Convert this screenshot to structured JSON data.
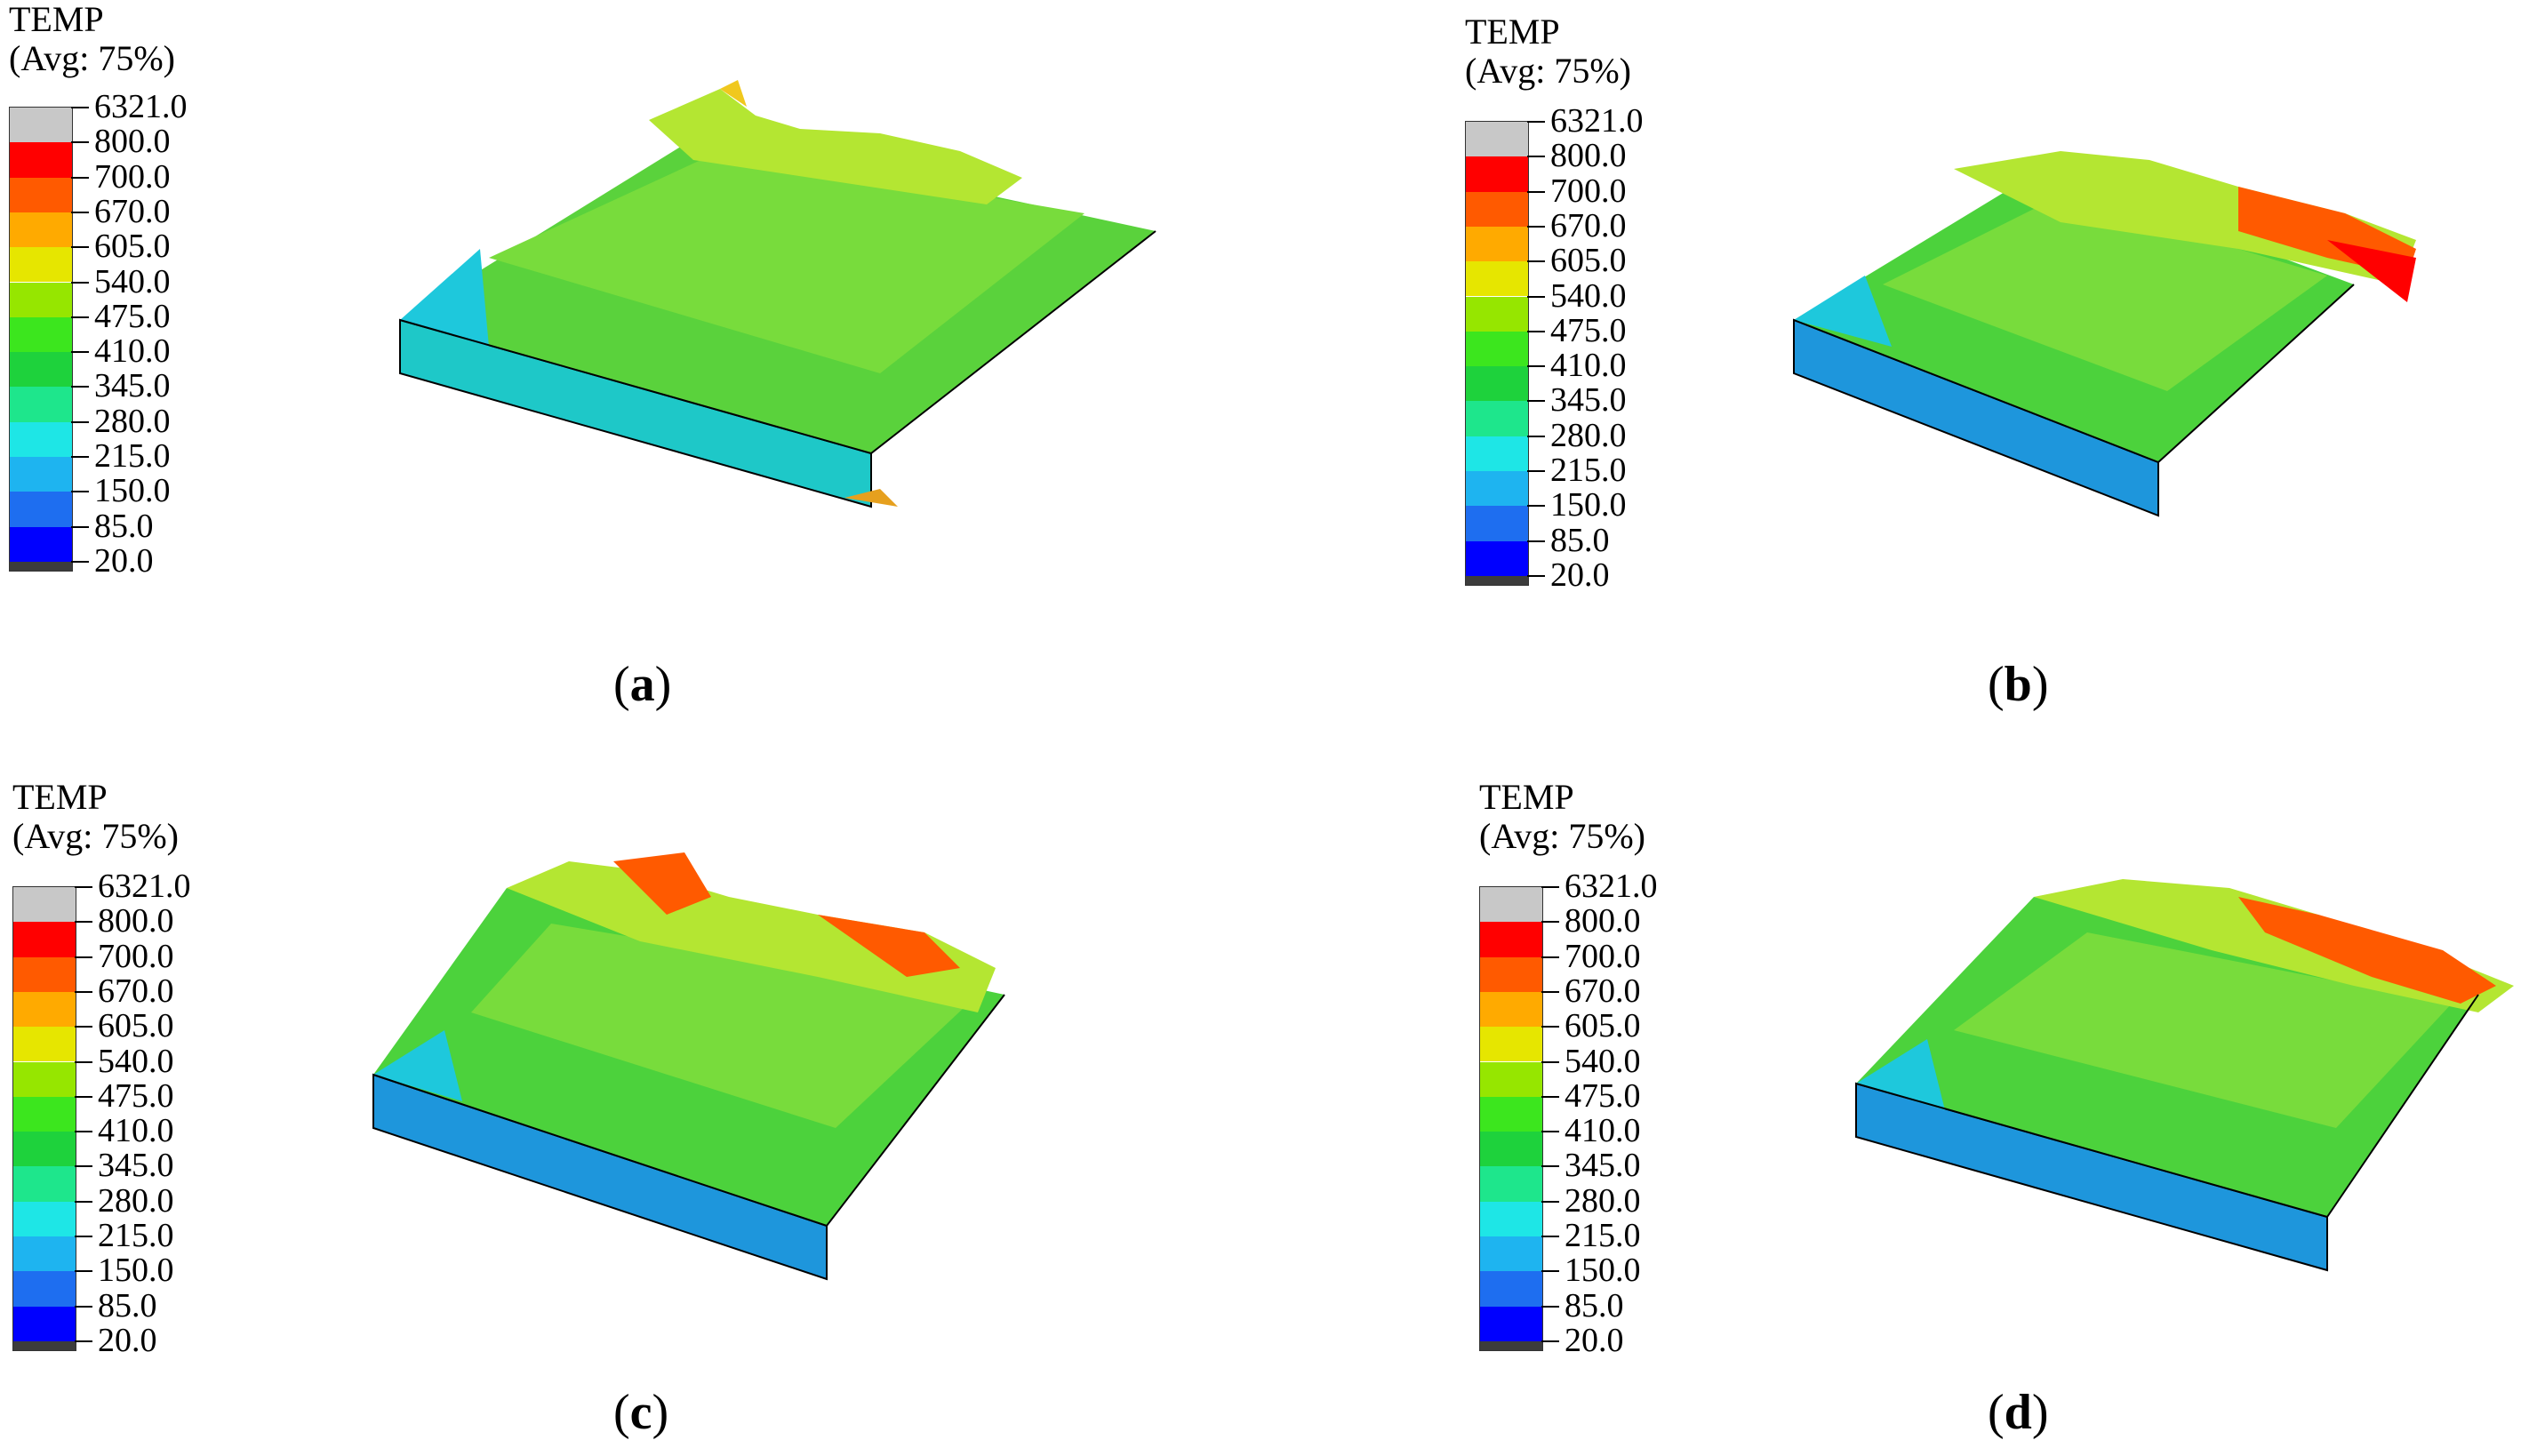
{
  "legend": {
    "title": "TEMP",
    "subtitle": "(Avg: 75%)",
    "levels": [
      "6321.0",
      "800.0",
      "700.0",
      "670.0",
      "605.0",
      "540.0",
      "475.0",
      "410.0",
      "345.0",
      "280.0",
      "215.0",
      "150.0",
      "85.0",
      "20.0"
    ],
    "colors": [
      "#c8c8c8",
      "#ff0000",
      "#ff5a00",
      "#ffaa00",
      "#e6e600",
      "#96e600",
      "#3ce61e",
      "#1ed23c",
      "#1ee68c",
      "#1ee6e6",
      "#1eb4f0",
      "#1e6ef0",
      "#0000ff",
      "#3c3c3c"
    ]
  },
  "panels": [
    {
      "caption_open": "(",
      "caption_letter": "a",
      "caption_close": ")"
    },
    {
      "caption_open": "(",
      "caption_letter": "b",
      "caption_close": ")"
    },
    {
      "caption_open": "(",
      "caption_letter": "c",
      "caption_close": ")"
    },
    {
      "caption_open": "(",
      "caption_letter": "d",
      "caption_close": ")"
    }
  ]
}
